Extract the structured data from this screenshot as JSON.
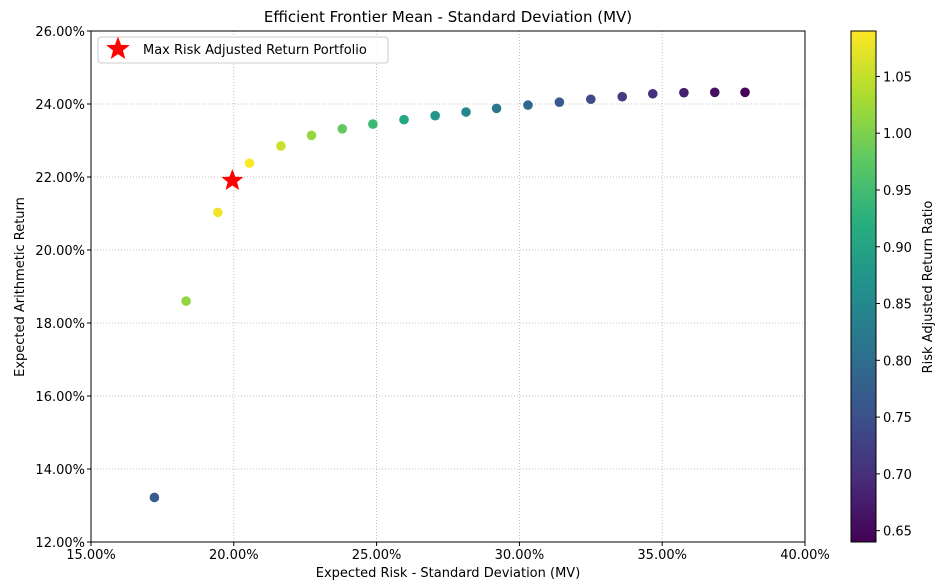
{
  "chart_data": {
    "type": "scatter",
    "title": "Efficient Frontier Mean - Standard Deviation (MV)",
    "xlabel": "Expected Risk - Standard Deviation (MV)",
    "ylabel": "Expected Arithmetic Return",
    "xlim": [
      0.15,
      0.4
    ],
    "ylim": [
      0.12,
      0.26
    ],
    "xticks": [
      0.15,
      0.2,
      0.25,
      0.3,
      0.35,
      0.4
    ],
    "xtick_labels": [
      "15.00%",
      "20.00%",
      "25.00%",
      "30.00%",
      "35.00%",
      "40.00%"
    ],
    "yticks": [
      0.12,
      0.14,
      0.16,
      0.18,
      0.2,
      0.22,
      0.24,
      0.26
    ],
    "ytick_labels": [
      "12.00%",
      "14.00%",
      "16.00%",
      "18.00%",
      "20.00%",
      "22.00%",
      "24.00%",
      "26.00%"
    ],
    "grid": true,
    "colormap": "viridis",
    "colorbar": {
      "label": "Risk Adjusted Return Ratio",
      "range": [
        0.64,
        1.09
      ],
      "ticks": [
        0.65,
        0.7,
        0.75,
        0.8,
        0.85,
        0.9,
        0.95,
        1.0,
        1.05
      ],
      "tick_labels": [
        "0.65",
        "0.70",
        "0.75",
        "0.80",
        "0.85",
        "0.90",
        "0.95",
        "1.00",
        "1.05"
      ]
    },
    "points": [
      {
        "x": 0.1722,
        "y": 0.1322,
        "ratio": 0.768
      },
      {
        "x": 0.1833,
        "y": 0.186,
        "ratio": 1.015
      },
      {
        "x": 0.1944,
        "y": 0.2103,
        "ratio": 1.082
      },
      {
        "x": 0.2055,
        "y": 0.2238,
        "ratio": 1.089
      },
      {
        "x": 0.2165,
        "y": 0.2285,
        "ratio": 1.055
      },
      {
        "x": 0.2272,
        "y": 0.2314,
        "ratio": 1.018
      },
      {
        "x": 0.238,
        "y": 0.2332,
        "ratio": 0.98
      },
      {
        "x": 0.2487,
        "y": 0.2345,
        "ratio": 0.943
      },
      {
        "x": 0.2596,
        "y": 0.2357,
        "ratio": 0.908
      },
      {
        "x": 0.2705,
        "y": 0.2368,
        "ratio": 0.875
      },
      {
        "x": 0.2813,
        "y": 0.2378,
        "ratio": 0.845
      },
      {
        "x": 0.292,
        "y": 0.2388,
        "ratio": 0.818
      },
      {
        "x": 0.303,
        "y": 0.2397,
        "ratio": 0.791
      },
      {
        "x": 0.314,
        "y": 0.2405,
        "ratio": 0.766
      },
      {
        "x": 0.325,
        "y": 0.2413,
        "ratio": 0.742
      },
      {
        "x": 0.336,
        "y": 0.242,
        "ratio": 0.72
      },
      {
        "x": 0.3467,
        "y": 0.2428,
        "ratio": 0.7
      },
      {
        "x": 0.3576,
        "y": 0.2431,
        "ratio": 0.68
      },
      {
        "x": 0.3684,
        "y": 0.2432,
        "ratio": 0.66
      },
      {
        "x": 0.379,
        "y": 0.2432,
        "ratio": 0.642
      }
    ],
    "highlight": {
      "name": "Max Risk Adjusted Return Portfolio",
      "x": 0.1995,
      "y": 0.219,
      "color": "#ff0000"
    },
    "legend": {
      "placement": "top-left",
      "entries": [
        "Max Risk Adjusted Return Portfolio"
      ]
    }
  }
}
